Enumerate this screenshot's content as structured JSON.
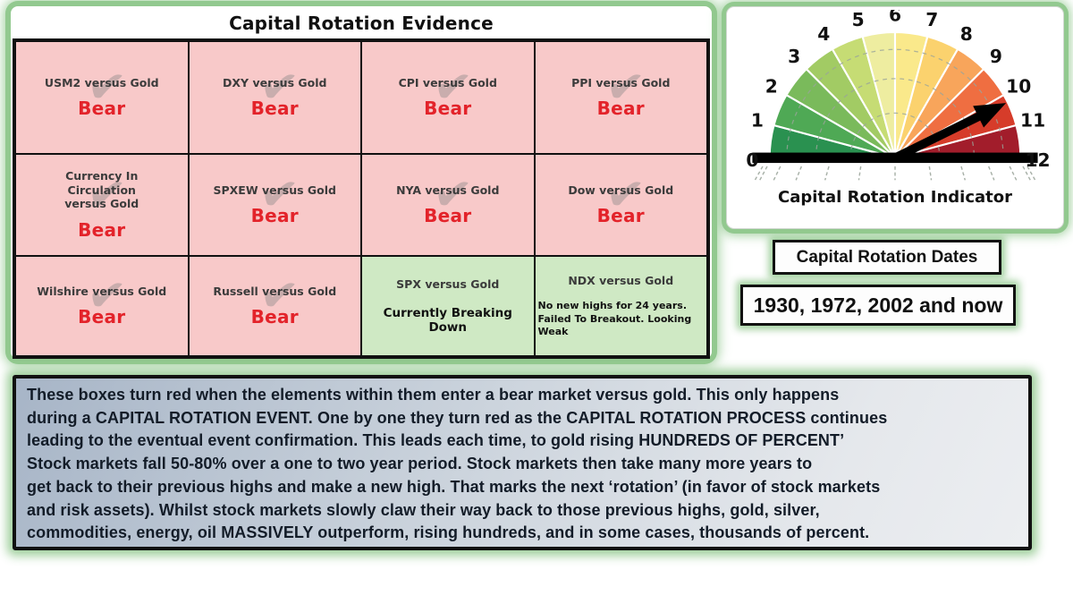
{
  "evidence": {
    "title": "Capital Rotation Evidence",
    "cells": [
      {
        "label": "USM2 versus Gold",
        "status": "Bear",
        "state": "bear",
        "check": true
      },
      {
        "label": "DXY versus Gold",
        "status": "Bear",
        "state": "bear",
        "check": true
      },
      {
        "label": "CPI versus Gold",
        "status": "Bear",
        "state": "bear",
        "check": true
      },
      {
        "label": "PPI versus Gold",
        "status": "Bear",
        "state": "bear",
        "check": true
      },
      {
        "label": "Currency In\nCirculation\nversus Gold",
        "status": "Bear",
        "state": "bear",
        "check": true
      },
      {
        "label": "SPXEW versus Gold",
        "status": "Bear",
        "state": "bear",
        "check": true
      },
      {
        "label": "NYA versus Gold",
        "status": "Bear",
        "state": "bear",
        "check": true
      },
      {
        "label": "Dow versus Gold",
        "status": "Bear",
        "state": "bear",
        "check": true
      },
      {
        "label": "Wilshire versus Gold",
        "status": "Bear",
        "state": "bear",
        "check": true
      },
      {
        "label": "Russell versus Gold",
        "status": "Bear",
        "state": "bear",
        "check": true
      },
      {
        "label": "SPX versus Gold",
        "status": "Currently Breaking Down",
        "state": "green",
        "check": false
      },
      {
        "label": "NDX versus Gold",
        "status": "No new highs for 24 years. Failed To Breakout. Looking Weak",
        "state": "green",
        "check": false,
        "small": true
      }
    ]
  },
  "gauge": {
    "caption": "Capital Rotation Indicator",
    "min": 0,
    "max": 12,
    "tick_labels": [
      "0",
      "1",
      "2",
      "3",
      "4",
      "5",
      "6",
      "7",
      "8",
      "9",
      "10",
      "11",
      "12"
    ],
    "segment_colors": [
      "#2a9150",
      "#4fa955",
      "#7aba5b",
      "#a2cb64",
      "#c6dc74",
      "#eeeda0",
      "#fae98b",
      "#fbd26e",
      "#f8a55b",
      "#ef6e41",
      "#d63c2a",
      "#a21d2b"
    ],
    "needle_value": 10.25,
    "needle_color": "#000000"
  },
  "chart_data": {
    "type": "pie",
    "subtype": "semicircular-gauge",
    "title": "Capital Rotation Indicator",
    "tick_labels": [
      "0",
      "1",
      "2",
      "3",
      "4",
      "5",
      "6",
      "7",
      "8",
      "9",
      "10",
      "11",
      "12"
    ],
    "segment_colors": [
      "#2a9150",
      "#4fa955",
      "#7aba5b",
      "#a2cb64",
      "#c6dc74",
      "#eeeda0",
      "#fae98b",
      "#fbd26e",
      "#f8a55b",
      "#ef6e41",
      "#d63c2a",
      "#a21d2b"
    ],
    "range": [
      0,
      12
    ],
    "needle_value": 10.25,
    "legend": "none"
  },
  "dates": {
    "title": "Capital Rotation Dates",
    "value": "1930, 1972, 2002 and now"
  },
  "note": {
    "lines": [
      "These boxes turn red when the elements within them enter a bear market versus gold. This only happens",
      "during a CAPITAL ROTATION EVENT. One by one they turn red as the CAPITAL ROTATION PROCESS continues",
      "leading to the eventual event confirmation. This leads each time, to gold rising HUNDREDS OF PERCENT’",
      "Stock markets fall 50-80% over a one to two year period. Stock markets then take many more years to",
      "get back to their previous highs and make a new high. That marks the next ‘rotation’ (in favor of stock markets",
      "and risk assets). Whilst stock markets slowly claw their way back to those previous highs, gold, silver,",
      "commodities, energy, oil MASSIVELY outperform, rising hundreds, and in some cases, thousands of percent."
    ]
  },
  "colors": {
    "bear_cell_bg": "#f8c9c9",
    "green_cell_bg": "#cfe9c4",
    "bear_text": "#e3232a",
    "panel_glow_green": "#92c98f",
    "note_bg_top": "#a7b5c7",
    "note_bg_bottom": "#eceef1",
    "checkmark_gray": "#a39696"
  }
}
